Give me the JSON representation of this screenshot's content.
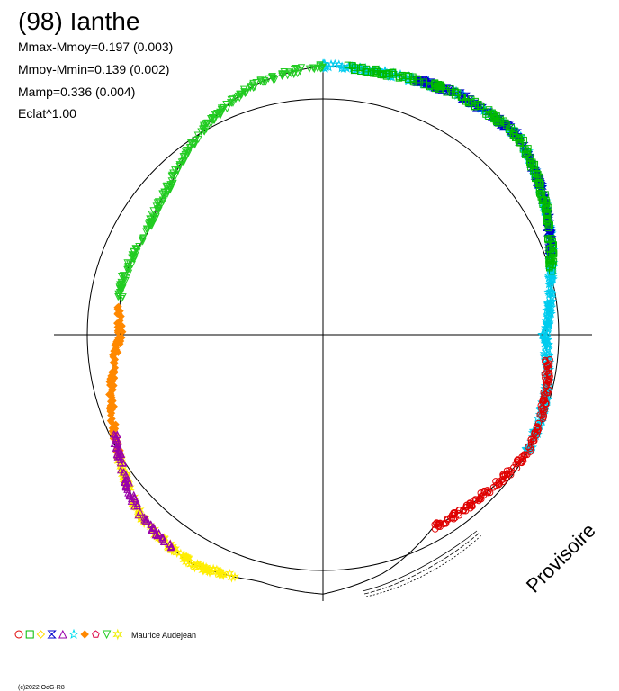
{
  "chart_data": {
    "type": "scatter",
    "title": "(98) Ianthe",
    "stats": [
      "Mmax-Mmoy=0.197 (0.003)",
      "Mmoy-Mmin=0.139 (0.002)",
      "Mamp=0.336 (0.004)",
      "Eclat^1.00"
    ],
    "watermark": "Provisoire",
    "author": "Maurice Audejean",
    "copyright": "(c)2022 OdG-R8",
    "mean_radius": 0.5,
    "projection": "polar",
    "theta_unit": "degrees clockwise from top",
    "series_colors": [
      "#e00000",
      "#00bb00",
      "#ffdd00",
      "#0000cc",
      "#9900aa",
      "#00ddee",
      "#ff8800",
      "#dd0044",
      "#22cc22",
      "#eeee00"
    ],
    "series_symbols": [
      "circle",
      "square",
      "diamond",
      "hourglass",
      "triangle-up",
      "star",
      "diamond-filled",
      "pentagon",
      "triangle-down",
      "star6"
    ],
    "series": [
      {
        "color": "#00ccee",
        "symbol": "star",
        "theta": [
          0,
          120
        ]
      },
      {
        "color": "#0000cc",
        "symbol": "hourglass",
        "theta": [
          20,
          72
        ]
      },
      {
        "color": "#e00000",
        "symbol": "circle",
        "theta": [
          96,
          150
        ]
      },
      {
        "color": "#ffee00",
        "symbol": "star6",
        "theta": [
          200,
          240
        ]
      },
      {
        "color": "#ff8800",
        "symbol": "diamond-filled",
        "theta": [
          240,
          278
        ]
      },
      {
        "color": "#9900aa",
        "symbol": "triangle-up",
        "theta": [
          215,
          245
        ]
      },
      {
        "color": "#22cc22",
        "symbol": "triangle-down",
        "theta": [
          280,
          360
        ]
      },
      {
        "color": "#00bb00",
        "symbol": "square",
        "theta": [
          5,
          75
        ]
      }
    ],
    "profile": [
      {
        "theta": 0,
        "r": 0.57
      },
      {
        "theta": 15,
        "r": 0.57
      },
      {
        "theta": 30,
        "r": 0.585
      },
      {
        "theta": 45,
        "r": 0.59
      },
      {
        "theta": 60,
        "r": 0.545
      },
      {
        "theta": 75,
        "r": 0.5
      },
      {
        "theta": 90,
        "r": 0.47
      },
      {
        "theta": 105,
        "r": 0.49
      },
      {
        "theta": 120,
        "r": 0.5
      },
      {
        "theta": 135,
        "r": 0.48
      },
      {
        "theta": 150,
        "r": 0.47
      },
      {
        "theta": 165,
        "r": 0.52
      },
      {
        "theta": 180,
        "r": 0.55
      },
      {
        "theta": 195,
        "r": 0.54
      },
      {
        "theta": 210,
        "r": 0.56
      },
      {
        "theta": 225,
        "r": 0.545
      },
      {
        "theta": 240,
        "r": 0.5
      },
      {
        "theta": 255,
        "r": 0.465
      },
      {
        "theta": 270,
        "r": 0.43
      },
      {
        "theta": 285,
        "r": 0.44
      },
      {
        "theta": 300,
        "r": 0.43
      },
      {
        "theta": 315,
        "r": 0.455
      },
      {
        "theta": 330,
        "r": 0.505
      },
      {
        "theta": 345,
        "r": 0.55
      },
      {
        "theta": 360,
        "r": 0.57
      }
    ]
  }
}
